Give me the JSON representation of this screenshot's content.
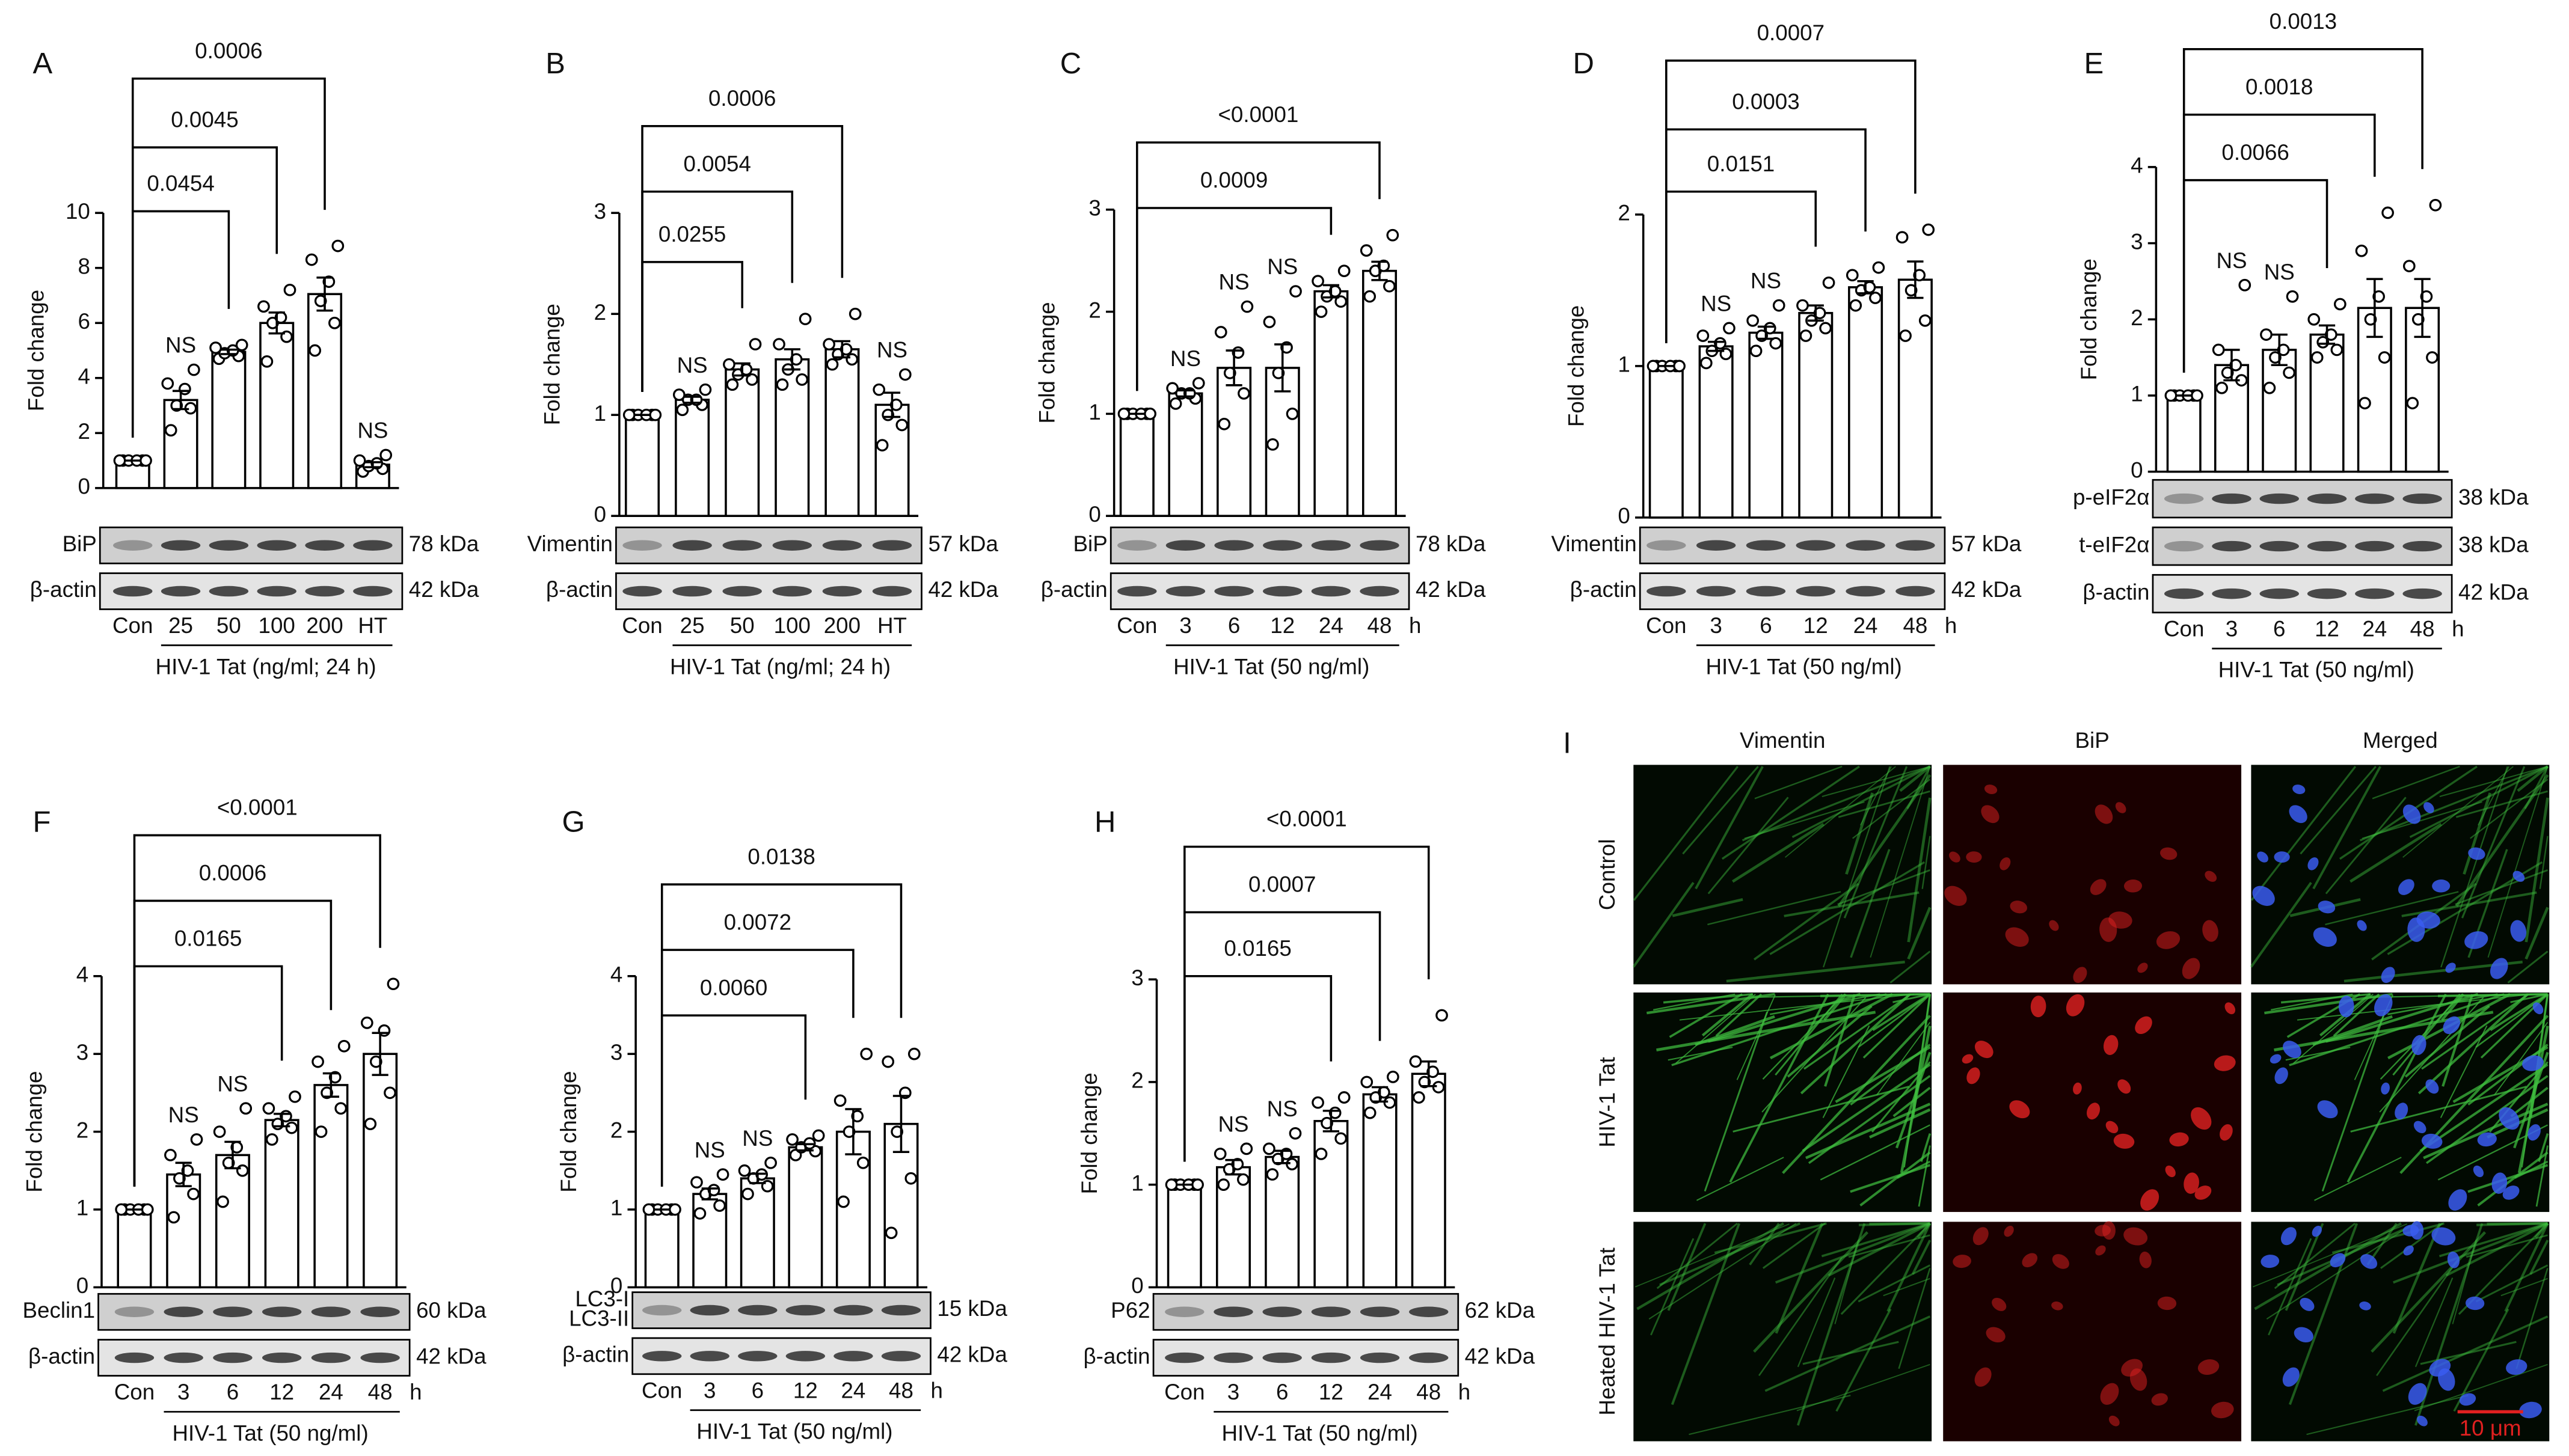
{
  "chart_data": [
    {
      "type": "bar",
      "letter": "A",
      "ylabel": "Fold change",
      "color": "#ffffff",
      "categories": [
        "Con",
        "25",
        "50",
        "100",
        "200",
        "HT"
      ],
      "x_unit": null,
      "group_label": "HIV-1 Tat (ng/ml; 24 h)",
      "values": [
        1,
        3.2,
        4.95,
        6.0,
        7.05,
        0.85
      ],
      "errors": [
        0,
        0.33,
        0.08,
        0.38,
        0.6,
        0.09
      ],
      "points": [
        [
          1,
          1,
          1,
          1,
          1,
          1
        ],
        [
          2.1,
          2.9,
          3.0,
          3.6,
          3.8,
          4.3
        ],
        [
          4.7,
          4.8,
          4.9,
          5.0,
          5.1,
          5.2
        ],
        [
          4.6,
          5.5,
          6.0,
          6.2,
          6.6,
          7.2
        ],
        [
          5.0,
          6.0,
          6.8,
          7.5,
          8.3,
          8.8
        ],
        [
          0.6,
          0.7,
          0.8,
          0.9,
          1.0,
          1.2
        ]
      ],
      "annotations": [
        null,
        "NS",
        null,
        null,
        null,
        "NS"
      ],
      "p_values": [
        null,
        null,
        "0.0454",
        "0.0045",
        "0.0006",
        null
      ],
      "ylim": [
        0,
        10
      ],
      "yticks": [
        0,
        2,
        4,
        6,
        8,
        10
      ],
      "blots": [
        {
          "label": "BiP",
          "size": "78 kDa"
        },
        {
          "label": "β-actin",
          "size": "42 kDa"
        }
      ]
    },
    {
      "type": "bar",
      "letter": "B",
      "ylabel": "Fold change",
      "color": "#ffffff",
      "categories": [
        "Con",
        "25",
        "50",
        "100",
        "200",
        "HT"
      ],
      "x_unit": null,
      "group_label": "HIV-1 Tat (ng/ml; 24 h)",
      "values": [
        1,
        1.15,
        1.45,
        1.55,
        1.65,
        1.1
      ],
      "errors": [
        0,
        0.03,
        0.06,
        0.1,
        0.08,
        0.12
      ],
      "points": [
        [
          1,
          1,
          1,
          1,
          1,
          1
        ],
        [
          1.05,
          1.1,
          1.15,
          1.15,
          1.2,
          1.25
        ],
        [
          1.3,
          1.35,
          1.4,
          1.45,
          1.5,
          1.7
        ],
        [
          1.3,
          1.35,
          1.45,
          1.55,
          1.7,
          1.95
        ],
        [
          1.5,
          1.55,
          1.6,
          1.65,
          1.7,
          2.0
        ],
        [
          0.7,
          0.9,
          1.0,
          1.1,
          1.25,
          1.4
        ]
      ],
      "annotations": [
        null,
        "NS",
        null,
        null,
        null,
        "NS"
      ],
      "p_values": [
        null,
        null,
        "0.0255",
        "0.0054",
        "0.0006",
        null
      ],
      "ylim": [
        0,
        3
      ],
      "yticks": [
        0,
        1,
        2,
        3
      ],
      "blots": [
        {
          "label": "Vimentin",
          "size": "57 kDa"
        },
        {
          "label": "β-actin",
          "size": "42 kDa"
        }
      ]
    },
    {
      "type": "bar",
      "letter": "C",
      "ylabel": "Fold change",
      "color": "#ffffff",
      "categories": [
        "Con",
        "3",
        "6",
        "12",
        "24",
        "48"
      ],
      "x_unit": "h",
      "group_label": "HIV-1 Tat (50 ng/ml)",
      "values": [
        1,
        1.2,
        1.45,
        1.45,
        2.2,
        2.4
      ],
      "errors": [
        0,
        0.03,
        0.17,
        0.23,
        0.06,
        0.09
      ],
      "points": [
        [
          1,
          1,
          1,
          1,
          1,
          1
        ],
        [
          1.1,
          1.15,
          1.2,
          1.2,
          1.25,
          1.3
        ],
        [
          0.9,
          1.2,
          1.4,
          1.6,
          1.8,
          2.05
        ],
        [
          0.7,
          1.0,
          1.4,
          1.65,
          1.9,
          2.2
        ],
        [
          2.0,
          2.1,
          2.15,
          2.2,
          2.3,
          2.4
        ],
        [
          2.15,
          2.25,
          2.4,
          2.45,
          2.6,
          2.75
        ]
      ],
      "annotations": [
        null,
        "NS",
        "NS",
        "NS",
        null,
        null
      ],
      "p_values": [
        null,
        null,
        null,
        null,
        "0.0009",
        "<0.0001"
      ],
      "ylim": [
        0,
        3
      ],
      "yticks": [
        0,
        1,
        2,
        3
      ],
      "blots": [
        {
          "label": "BiP",
          "size": "78 kDa"
        },
        {
          "label": "β-actin",
          "size": "42 kDa"
        }
      ]
    },
    {
      "type": "bar",
      "letter": "D",
      "ylabel": "Fold change",
      "color": "#ffffff",
      "categories": [
        "Con",
        "3",
        "6",
        "12",
        "24",
        "48"
      ],
      "x_unit": "h",
      "group_label": "HIV-1 Tat (50 ng/ml)",
      "values": [
        1,
        1.13,
        1.22,
        1.35,
        1.52,
        1.57
      ],
      "errors": [
        0,
        0.03,
        0.04,
        0.05,
        0.04,
        0.12
      ],
      "points": [
        [
          1,
          1,
          1,
          1,
          1,
          1
        ],
        [
          1.02,
          1.08,
          1.1,
          1.15,
          1.2,
          1.25
        ],
        [
          1.1,
          1.15,
          1.2,
          1.25,
          1.3,
          1.4
        ],
        [
          1.2,
          1.25,
          1.3,
          1.35,
          1.4,
          1.55
        ],
        [
          1.4,
          1.45,
          1.5,
          1.52,
          1.6,
          1.65
        ],
        [
          1.2,
          1.3,
          1.5,
          1.6,
          1.85,
          1.9
        ]
      ],
      "annotations": [
        null,
        "NS",
        "NS",
        null,
        null,
        null
      ],
      "p_values": [
        null,
        null,
        null,
        "0.0151",
        "0.0003",
        "0.0007"
      ],
      "ylim": [
        0,
        2
      ],
      "yticks": [
        0,
        1,
        2
      ],
      "blots": [
        {
          "label": "Vimentin",
          "size": "57 kDa"
        },
        {
          "label": "β-actin",
          "size": "42 kDa"
        }
      ]
    },
    {
      "type": "bar",
      "letter": "E",
      "ylabel": "Fold change",
      "color": "#ffffff",
      "categories": [
        "Con",
        "3",
        "6",
        "12",
        "24",
        "48"
      ],
      "x_unit": "h",
      "group_label": "HIV-1 Tat (50 ng/ml)",
      "values": [
        1,
        1.4,
        1.6,
        1.8,
        2.15,
        2.15
      ],
      "errors": [
        0,
        0.2,
        0.2,
        0.12,
        0.38,
        0.38
      ],
      "points": [
        [
          1,
          1,
          1,
          1,
          1,
          1
        ],
        [
          1.1,
          1.2,
          1.3,
          1.4,
          1.6,
          2.45
        ],
        [
          1.1,
          1.3,
          1.5,
          1.6,
          1.8,
          2.3
        ],
        [
          1.5,
          1.6,
          1.7,
          1.8,
          2.0,
          2.2
        ],
        [
          0.9,
          1.5,
          2.0,
          2.3,
          2.9,
          3.4
        ],
        [
          0.9,
          1.5,
          2.0,
          2.3,
          2.7,
          3.5
        ]
      ],
      "annotations": [
        null,
        "NS",
        "NS",
        null,
        null,
        null
      ],
      "p_values": [
        null,
        null,
        null,
        "0.0066",
        "0.0018",
        "0.0013"
      ],
      "ylim": [
        0,
        4
      ],
      "yticks": [
        0,
        1,
        2,
        3,
        4
      ],
      "blots": [
        {
          "label": "p-eIF2α",
          "size": "38 kDa"
        },
        {
          "label": "t-eIF2α",
          "size": "38 kDa"
        },
        {
          "label": "β-actin",
          "size": "42 kDa"
        }
      ]
    },
    {
      "type": "bar",
      "letter": "F",
      "ylabel": "Fold change",
      "color": "#ffffff",
      "categories": [
        "Con",
        "3",
        "6",
        "12",
        "24",
        "48"
      ],
      "x_unit": "h",
      "group_label": "HIV-1 Tat (50 ng/ml)",
      "values": [
        1,
        1.45,
        1.7,
        2.15,
        2.6,
        3.0
      ],
      "errors": [
        0,
        0.15,
        0.17,
        0.08,
        0.15,
        0.27
      ],
      "points": [
        [
          1,
          1,
          1,
          1,
          1,
          1
        ],
        [
          0.9,
          1.2,
          1.4,
          1.5,
          1.7,
          1.9
        ],
        [
          1.1,
          1.5,
          1.6,
          1.8,
          2.0,
          2.3
        ],
        [
          1.9,
          2.05,
          2.1,
          2.2,
          2.3,
          2.45
        ],
        [
          2.0,
          2.3,
          2.5,
          2.7,
          2.9,
          3.1
        ],
        [
          2.1,
          2.5,
          2.9,
          3.3,
          3.4,
          3.9
        ]
      ],
      "annotations": [
        null,
        "NS",
        "NS",
        null,
        null,
        null
      ],
      "p_values": [
        null,
        null,
        null,
        "0.0165",
        "0.0006",
        "<0.0001"
      ],
      "ylim": [
        0,
        4
      ],
      "yticks": [
        0,
        1,
        2,
        3,
        4
      ],
      "blots": [
        {
          "label": "Beclin1",
          "size": "60 kDa"
        },
        {
          "label": "β-actin",
          "size": "42 kDa"
        }
      ]
    },
    {
      "type": "bar",
      "letter": "G",
      "ylabel": "Fold change",
      "color": "#ffffff",
      "categories": [
        "Con",
        "3",
        "6",
        "12",
        "24",
        "48"
      ],
      "x_unit": "h",
      "group_label": "HIV-1 Tat (50 ng/ml)",
      "values": [
        1,
        1.2,
        1.4,
        1.8,
        2.0,
        2.1
      ],
      "errors": [
        0,
        0.07,
        0.06,
        0.04,
        0.29,
        0.36
      ],
      "points": [
        [
          1,
          1,
          1,
          1,
          1,
          1
        ],
        [
          0.95,
          1.05,
          1.2,
          1.25,
          1.35,
          1.45
        ],
        [
          1.2,
          1.3,
          1.4,
          1.45,
          1.5,
          1.6
        ],
        [
          1.7,
          1.75,
          1.8,
          1.85,
          1.9,
          1.95
        ],
        [
          1.1,
          1.6,
          2.0,
          2.2,
          2.4,
          3.0
        ],
        [
          0.7,
          1.4,
          2.0,
          2.5,
          2.9,
          3.0
        ]
      ],
      "annotations": [
        null,
        "NS",
        "NS",
        null,
        null,
        null
      ],
      "p_values": [
        null,
        null,
        null,
        "0.0060",
        "0.0072",
        "0.0138"
      ],
      "ylim": [
        0,
        4
      ],
      "yticks": [
        0,
        1,
        2,
        3,
        4
      ],
      "blots": [
        {
          "label": [
            "LC3-I",
            "LC3-II"
          ],
          "size": "15 kDa"
        },
        {
          "label": "β-actin",
          "size": "42 kDa"
        }
      ]
    },
    {
      "type": "bar",
      "letter": "H",
      "ylabel": "Fold change",
      "color": "#ffffff",
      "categories": [
        "Con",
        "3",
        "6",
        "12",
        "24",
        "48"
      ],
      "x_unit": "h",
      "group_label": "HIV-1 Tat (50 ng/ml)",
      "values": [
        1,
        1.17,
        1.27,
        1.62,
        1.88,
        2.08
      ],
      "errors": [
        0,
        0.07,
        0.06,
        0.1,
        0.07,
        0.12
      ],
      "points": [
        [
          1,
          1,
          1,
          1,
          1,
          1
        ],
        [
          1.0,
          1.05,
          1.15,
          1.2,
          1.3,
          1.35
        ],
        [
          1.1,
          1.2,
          1.25,
          1.3,
          1.35,
          1.5
        ],
        [
          1.3,
          1.45,
          1.6,
          1.7,
          1.8,
          1.85
        ],
        [
          1.7,
          1.8,
          1.85,
          1.9,
          2.0,
          2.05
        ],
        [
          1.85,
          1.95,
          2.0,
          2.1,
          2.2,
          2.65
        ]
      ],
      "annotations": [
        null,
        "NS",
        "NS",
        null,
        null,
        null
      ],
      "p_values": [
        null,
        null,
        null,
        "0.0165",
        "0.0007",
        "<0.0001"
      ],
      "ylim": [
        0,
        3
      ],
      "yticks": [
        0,
        1,
        2,
        3
      ],
      "blots": [
        {
          "label": "P62",
          "size": "62 kDa"
        },
        {
          "label": "β-actin",
          "size": "42 kDa"
        }
      ]
    }
  ],
  "micrograph_panel": {
    "letter": "I",
    "columns": [
      "Vimentin",
      "BiP",
      "Merged"
    ],
    "rows": [
      "Control",
      "HIV-1 Tat",
      "Heated HIV-1 Tat"
    ],
    "scale_bar": "10 μm"
  }
}
